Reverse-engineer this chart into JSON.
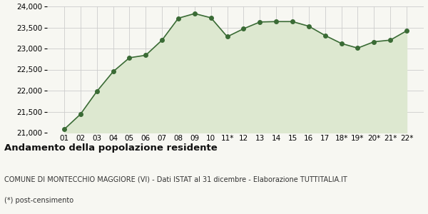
{
  "x_labels": [
    "01",
    "02",
    "03",
    "04",
    "05",
    "06",
    "07",
    "08",
    "09",
    "10",
    "11*",
    "12",
    "13",
    "14",
    "15",
    "16",
    "17",
    "18*",
    "19*",
    "20*",
    "21*",
    "22*"
  ],
  "y_values": [
    21080,
    21440,
    21980,
    22450,
    22780,
    22840,
    23200,
    23720,
    23830,
    23730,
    23280,
    23470,
    23630,
    23640,
    23640,
    23530,
    23310,
    23120,
    23010,
    23160,
    23200,
    23420
  ],
  "line_color": "#3a6b35",
  "fill_color": "#dde8d0",
  "marker_color": "#3a6b35",
  "bg_color": "#f7f7f2",
  "grid_color": "#cccccc",
  "ylim": [
    21000,
    24000
  ],
  "yticks": [
    21000,
    21500,
    22000,
    22500,
    23000,
    23500,
    24000
  ],
  "title": "Andamento della popolazione residente",
  "subtitle": "COMUNE DI MONTECCHIO MAGGIORE (VI) - Dati ISTAT al 31 dicembre - Elaborazione TUTTITALIA.IT",
  "footnote": "(*) post-censimento",
  "title_fontsize": 9.5,
  "subtitle_fontsize": 7.0,
  "footnote_fontsize": 7.0,
  "tick_fontsize": 7.5
}
